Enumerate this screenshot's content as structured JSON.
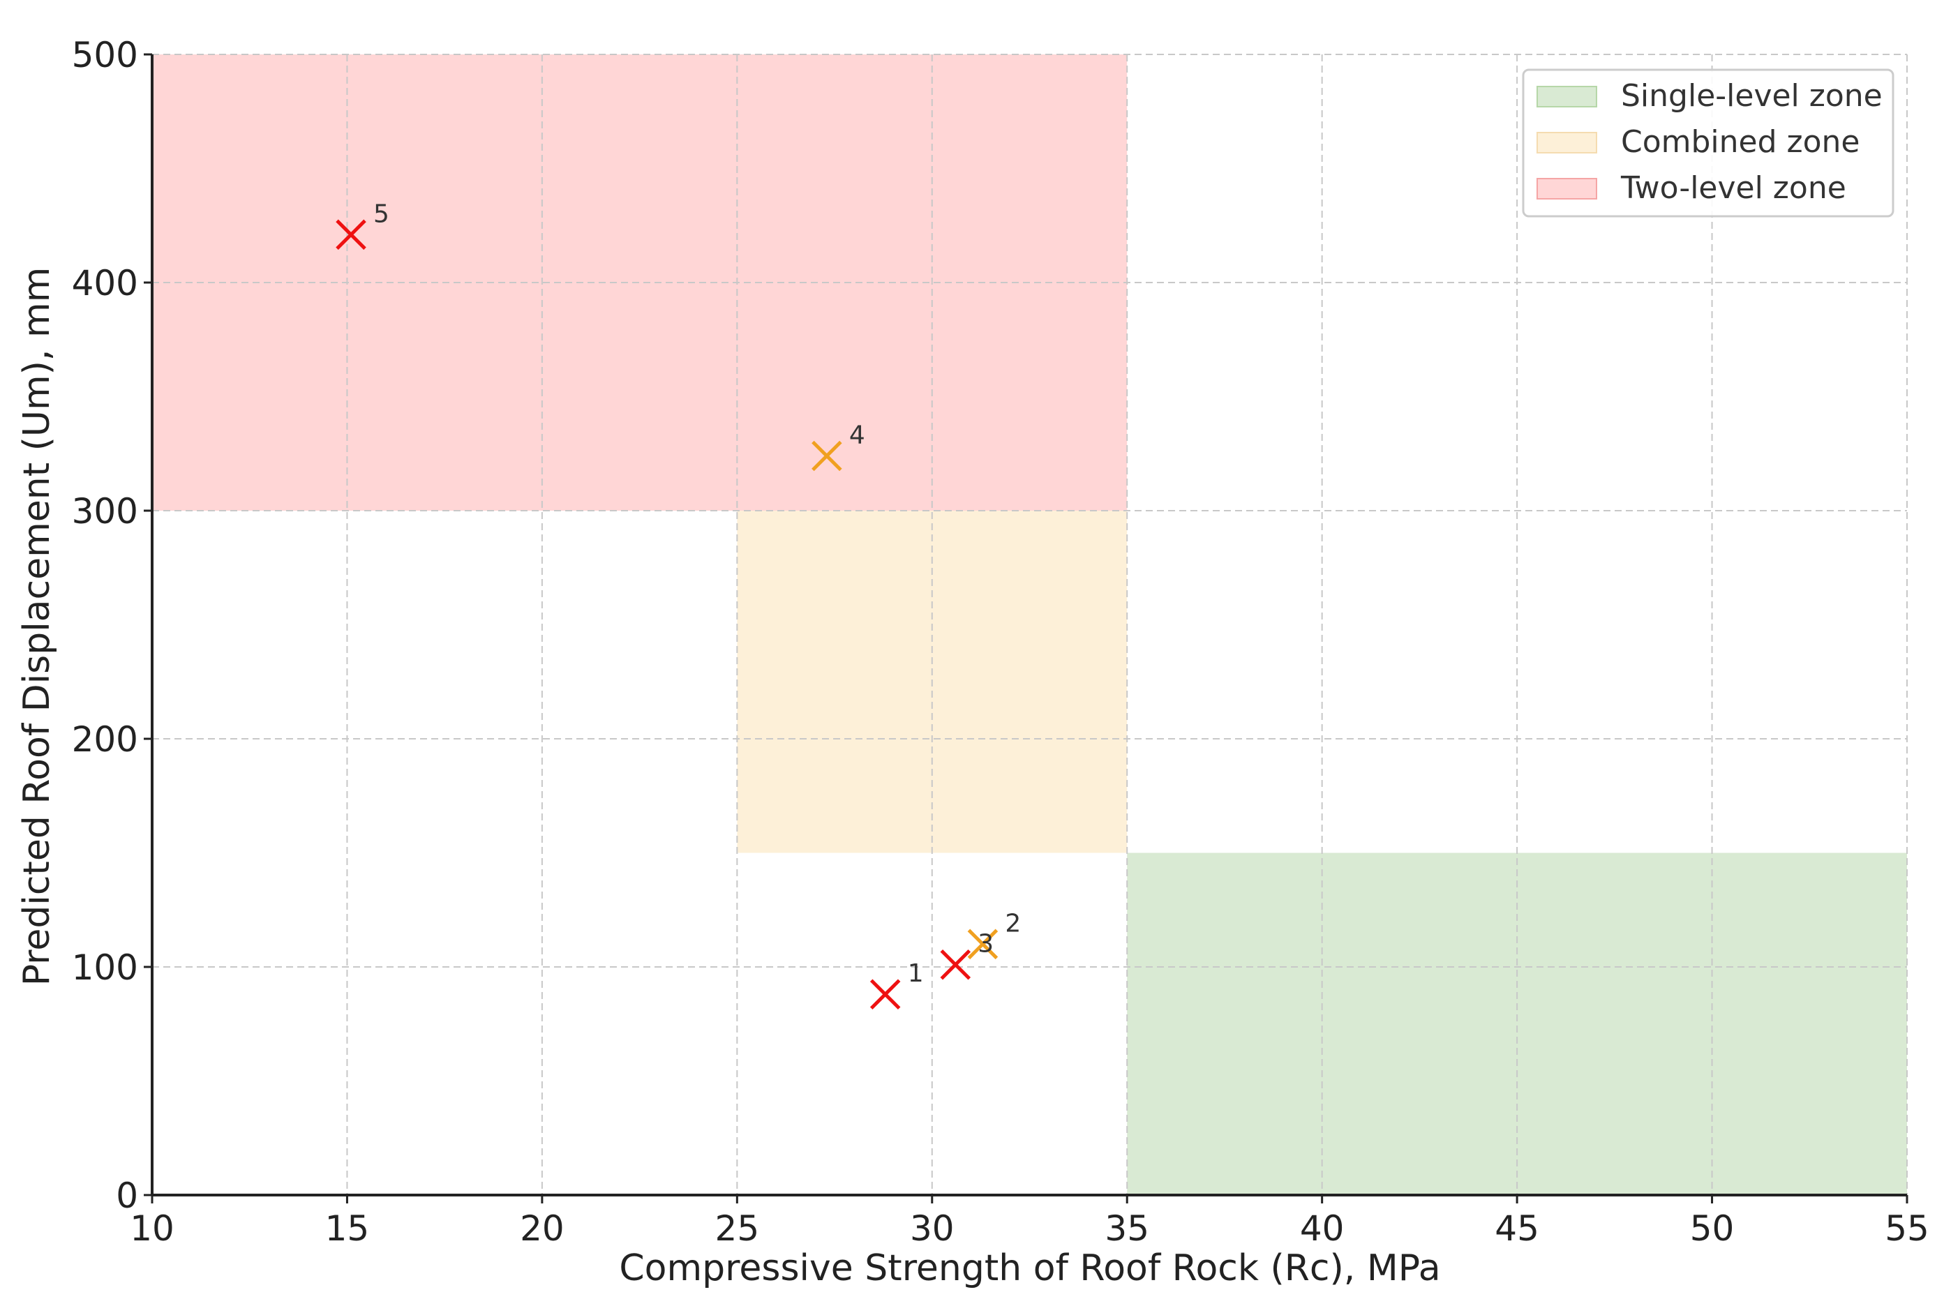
{
  "chart_data": {
    "type": "scatter",
    "title": "",
    "xlabel": "Compressive Strength of Roof Rock (Rc), MPa",
    "ylabel": "Predicted Roof Displacement (Um), mm",
    "xlim": [
      10,
      55
    ],
    "ylim": [
      0,
      500
    ],
    "xticks": [
      "10",
      "15",
      "20",
      "25",
      "30",
      "35",
      "40",
      "45",
      "50",
      "55"
    ],
    "yticks": [
      "0",
      "100",
      "200",
      "300",
      "400",
      "500"
    ],
    "grid": true,
    "legend_position": "top-right",
    "zones": [
      {
        "name": "Single-level zone",
        "color": "#d9ead3",
        "x_range": [
          35,
          55
        ],
        "y_range": [
          0,
          150
        ]
      },
      {
        "name": "Combined zone",
        "color": "#fdf0d8",
        "x_range": [
          25,
          35
        ],
        "y_range": [
          150,
          300
        ]
      },
      {
        "name": "Two-level zone",
        "color": "#ffd6d6",
        "x_range": [
          10,
          35
        ],
        "y_range": [
          300,
          500
        ]
      }
    ],
    "points": [
      {
        "label": "1",
        "x": 28.8,
        "y": 88,
        "color": "#ee1111"
      },
      {
        "label": "2",
        "x": 31.3,
        "y": 110,
        "color": "#f0a020"
      },
      {
        "label": "3",
        "x": 30.6,
        "y": 101,
        "color": "#ee1111"
      },
      {
        "label": "4",
        "x": 27.3,
        "y": 324,
        "color": "#f0a020"
      },
      {
        "label": "5",
        "x": 15.1,
        "y": 421,
        "color": "#ee1111"
      }
    ]
  }
}
